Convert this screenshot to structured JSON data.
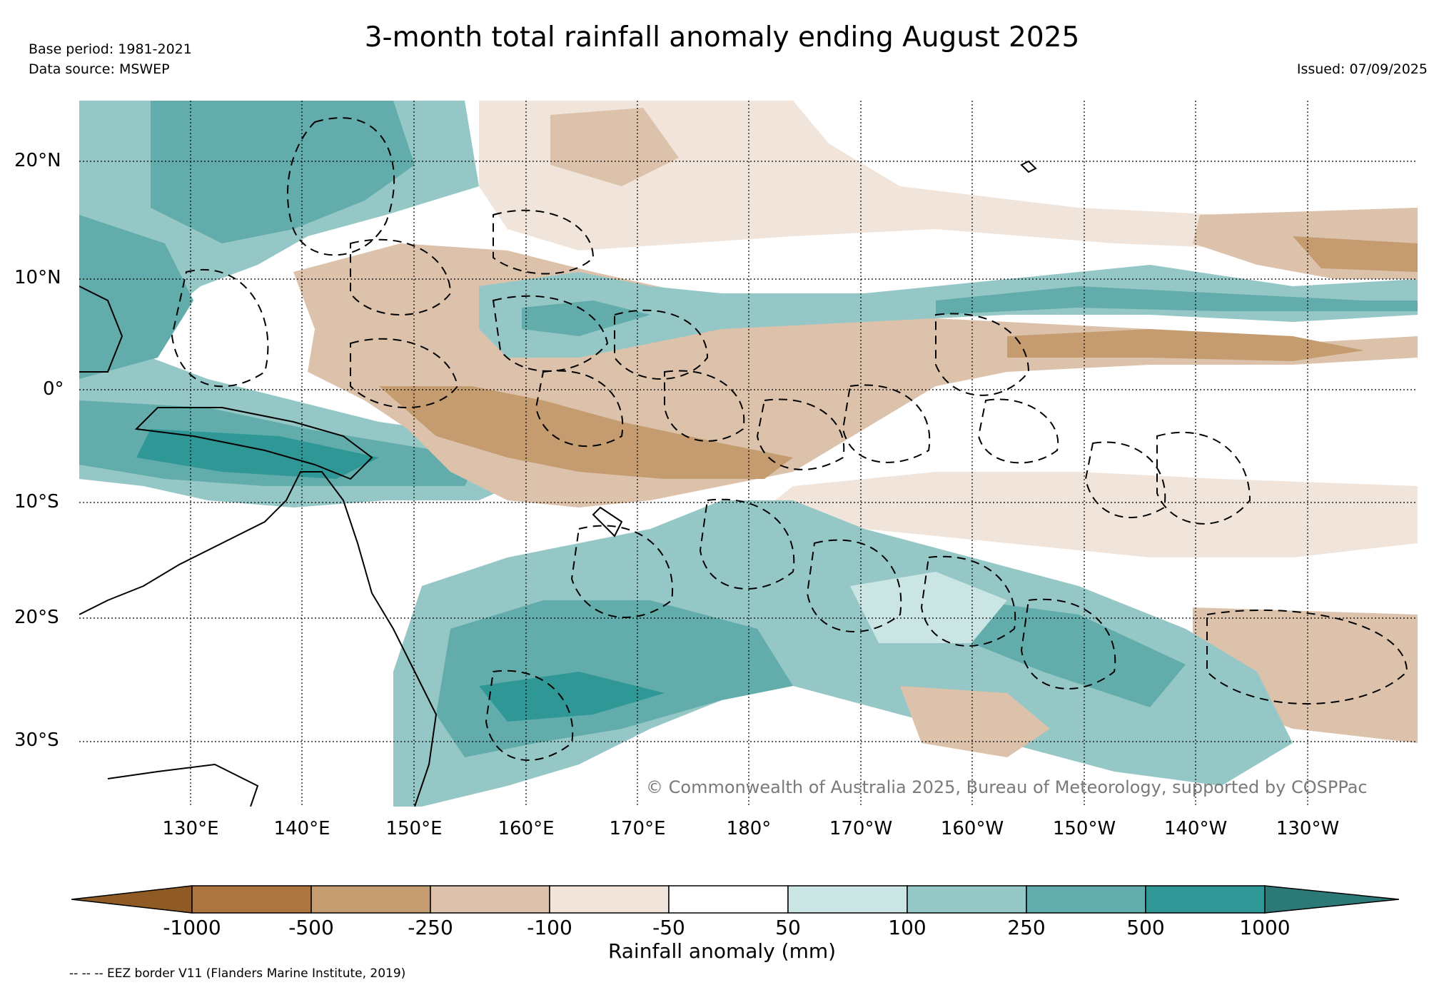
{
  "header": {
    "title": "3-month total rainfall anomaly ending August 2025",
    "base_period": "Base period: 1981-2021",
    "data_source": "Data source: MSWEP",
    "issued": "Issued: 07/09/2025"
  },
  "map": {
    "lat_labels": [
      "20°N",
      "10°N",
      "0°",
      "10°S",
      "20°S",
      "30°S"
    ],
    "lon_labels": [
      "130°E",
      "140°E",
      "150°E",
      "160°E",
      "170°E",
      "180°",
      "170°W",
      "160°W",
      "150°W",
      "140°W",
      "130°W"
    ],
    "copyright": "© Commonwealth of Australia 2025, Bureau of Meteorology, supported by COSPPac"
  },
  "colorbar": {
    "label": "Rainfall anomaly (mm)",
    "ticks": [
      "-1000",
      "-500",
      "-250",
      "-100",
      "-50",
      "50",
      "100",
      "250",
      "500",
      "1000"
    ],
    "colors": [
      "#8f5a24",
      "#ad7640",
      "#c59c70",
      "#dcc2aa",
      "#f1e5db",
      "#ffffff",
      "#cbe4e4",
      "#95c7c6",
      "#62adab",
      "#2f9896",
      "#2b7a78"
    ]
  },
  "legend": {
    "eez_note": "-- -- -- EEZ border V11 (Flanders Marine Institute, 2019)"
  }
}
